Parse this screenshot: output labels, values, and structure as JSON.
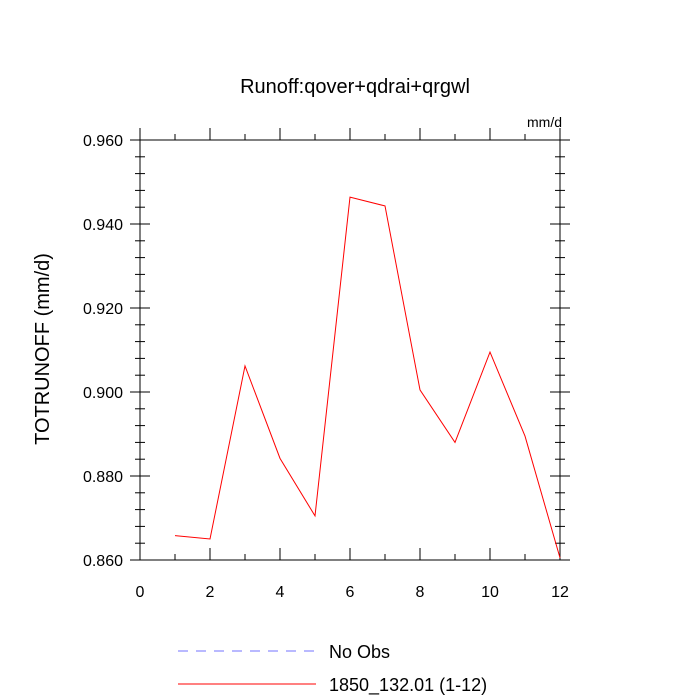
{
  "chart_data": {
    "type": "line",
    "title": "Runoff:qover+qdrai+qrgwl",
    "units_label": "mm/d",
    "ylabel": "TOTRUNOFF  (mm/d)",
    "xlabel": "",
    "xlim": [
      0,
      12
    ],
    "ylim": [
      0.86,
      0.96
    ],
    "x_ticks": [
      0,
      2,
      4,
      6,
      8,
      10,
      12
    ],
    "x_tick_labels": [
      "0",
      "2",
      "4",
      "6",
      "8",
      "10",
      "12"
    ],
    "y_ticks": [
      0.86,
      0.88,
      0.9,
      0.92,
      0.94,
      0.96
    ],
    "y_tick_labels": [
      "0.860",
      "0.880",
      "0.900",
      "0.920",
      "0.940",
      "0.960"
    ],
    "grid": false,
    "legend_position": "bottom",
    "series": [
      {
        "name": "No Obs",
        "color": "#0000ff",
        "style": "dashed",
        "x": [],
        "y": []
      },
      {
        "name": "1850_132.01 (1-12)",
        "color": "#ff0000",
        "style": "solid",
        "x": [
          1,
          2,
          3,
          4,
          5,
          6,
          7,
          8,
          9,
          10,
          11,
          12
        ],
        "y": [
          0.8658,
          0.865,
          0.9062,
          0.8842,
          0.8705,
          0.9464,
          0.9443,
          0.9005,
          0.888,
          0.9095,
          0.8895,
          0.8605
        ]
      }
    ]
  }
}
